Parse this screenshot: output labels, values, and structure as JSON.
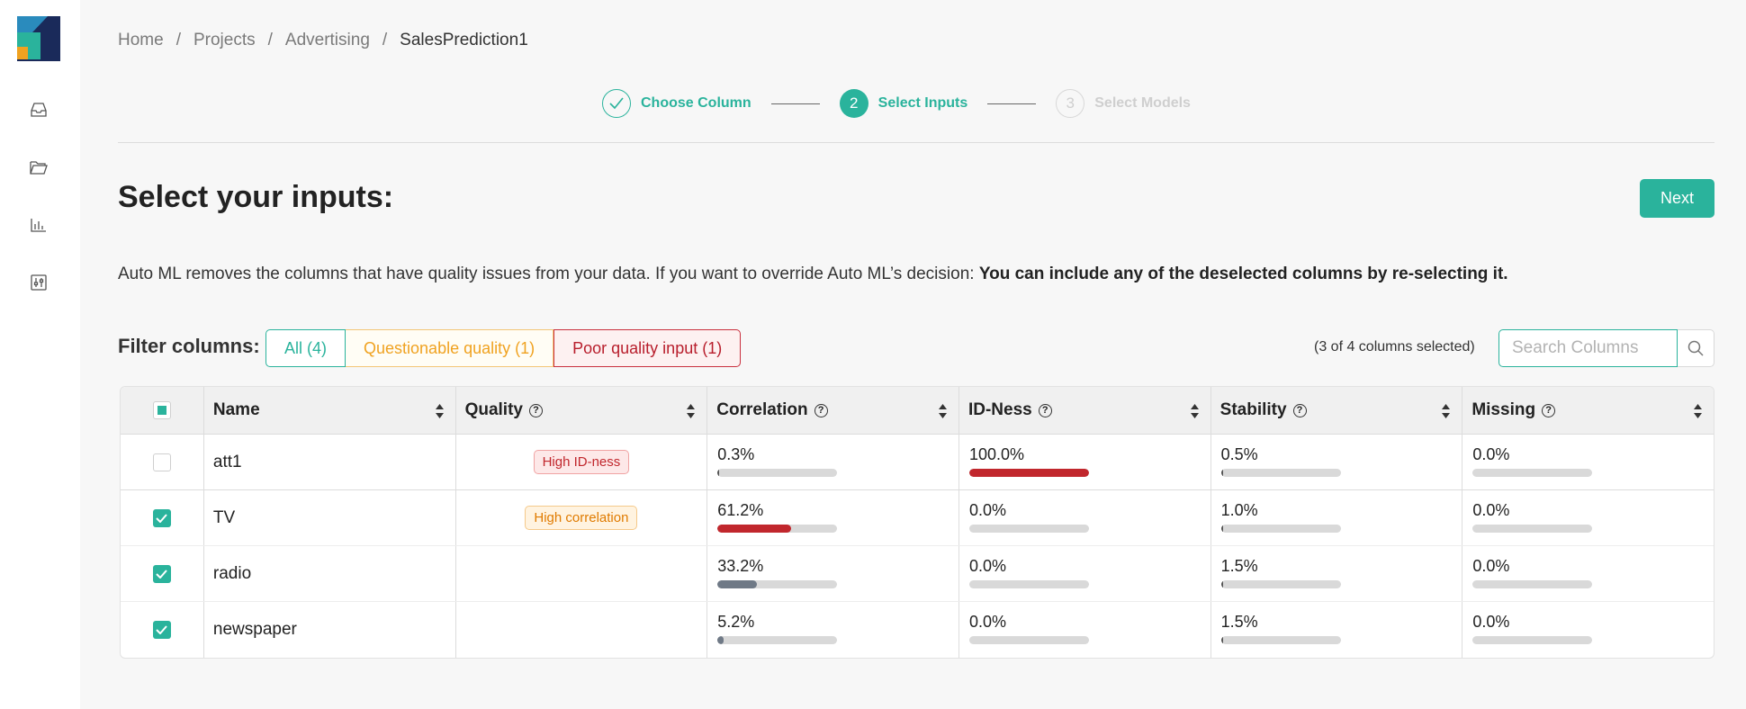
{
  "sidebar": {
    "icons": [
      "inbox-icon",
      "folder-icon",
      "bar-chart-icon",
      "sliders-icon"
    ]
  },
  "breadcrumb": {
    "items": [
      "Home",
      "Projects",
      "Advertising"
    ],
    "current": "SalesPrediction1"
  },
  "stepper": {
    "steps": [
      {
        "label": "Choose Column",
        "state": "done"
      },
      {
        "label": "Select Inputs",
        "number": "2",
        "state": "active"
      },
      {
        "label": "Select Models",
        "number": "3",
        "state": "todo"
      }
    ]
  },
  "page": {
    "title": "Select your inputs:",
    "next_label": "Next",
    "description": "Auto ML removes the columns that have quality issues from your data. If you want to override Auto ML’s decision: ",
    "description_bold": "You can include any of the deselected columns by re-selecting it."
  },
  "filter": {
    "label": "Filter columns:",
    "all": "All (4)",
    "questionable": "Questionable quality (1)",
    "poor": "Poor quality input (1)",
    "selected_count": "(3 of 4 columns selected)",
    "search_placeholder": "Search Columns"
  },
  "table": {
    "headers": {
      "name": "Name",
      "quality": "Quality",
      "correlation": "Correlation",
      "idness": "ID-Ness",
      "stability": "Stability",
      "missing": "Missing"
    },
    "rows": [
      {
        "selected": false,
        "name": "att1",
        "quality": "High ID-ness",
        "quality_type": "red",
        "correlation": "0.3%",
        "corr_value": 0.3,
        "corr_color": "#555555",
        "idness": "100.0%",
        "id_value": 100,
        "id_color": "#c1272d",
        "stability": "0.5%",
        "stab_value": 0.5,
        "missing": "0.0%",
        "miss_value": 0
      },
      {
        "selected": true,
        "name": "TV",
        "quality": "High correlation",
        "quality_type": "orange",
        "correlation": "61.2%",
        "corr_value": 61.2,
        "corr_color": "#c1272d",
        "idness": "0.0%",
        "id_value": 0,
        "id_color": "#c1272d",
        "stability": "1.0%",
        "stab_value": 1.0,
        "missing": "0.0%",
        "miss_value": 0
      },
      {
        "selected": true,
        "name": "radio",
        "quality": "",
        "quality_type": "",
        "correlation": "33.2%",
        "corr_value": 33.2,
        "corr_color": "#6f7986",
        "idness": "0.0%",
        "id_value": 0,
        "id_color": "#c1272d",
        "stability": "1.5%",
        "stab_value": 1.5,
        "missing": "0.0%",
        "miss_value": 0
      },
      {
        "selected": true,
        "name": "newspaper",
        "quality": "",
        "quality_type": "",
        "correlation": "5.2%",
        "corr_value": 5.2,
        "corr_color": "#6f7986",
        "idness": "0.0%",
        "id_value": 0,
        "id_color": "#c1272d",
        "stability": "1.5%",
        "stab_value": 1.5,
        "missing": "0.0%",
        "miss_value": 0
      }
    ]
  },
  "colors": {
    "accent": "#2ab39c",
    "danger": "#c1272d",
    "warning": "#f0a220"
  }
}
